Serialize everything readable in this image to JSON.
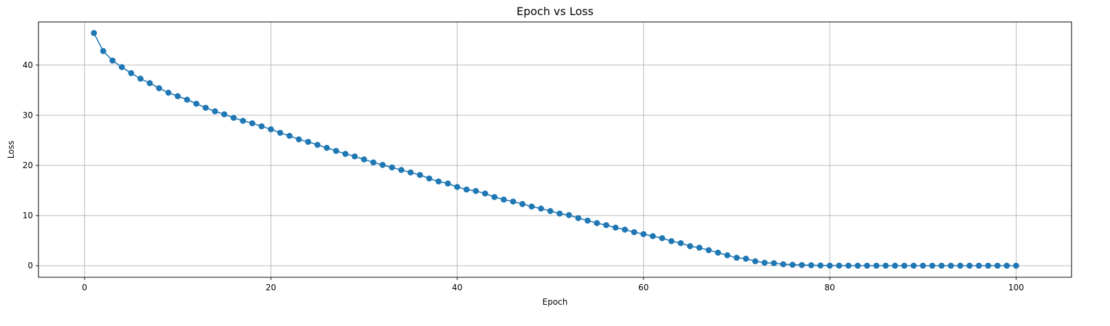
{
  "chart_data": {
    "type": "line",
    "title": "Epoch vs Loss",
    "xlabel": "Epoch",
    "ylabel": "Loss",
    "xlim": [
      -4.95,
      105.95
    ],
    "ylim": [
      -2.3,
      48.6
    ],
    "xticks": [
      0,
      20,
      40,
      60,
      80,
      100
    ],
    "yticks": [
      0,
      10,
      20,
      30,
      40
    ],
    "grid": true,
    "markers": true,
    "color": "#1f77b4",
    "series": [
      {
        "x": [
          1,
          2,
          3,
          4,
          5,
          6,
          7,
          8,
          9,
          10,
          11,
          12,
          13,
          14,
          15,
          16,
          17,
          18,
          19,
          20,
          21,
          22,
          23,
          24,
          25,
          26,
          27,
          28,
          29,
          30,
          31,
          32,
          33,
          34,
          35,
          36,
          37,
          38,
          39,
          40,
          41,
          42,
          43,
          44,
          45,
          46,
          47,
          48,
          49,
          50,
          51,
          52,
          53,
          54,
          55,
          56,
          57,
          58,
          59,
          60,
          61,
          62,
          63,
          64,
          65,
          66,
          67,
          68,
          69,
          70,
          71,
          72,
          73,
          74,
          75,
          76,
          77,
          78,
          79,
          80,
          81,
          82,
          83,
          84,
          85,
          86,
          87,
          88,
          89,
          90,
          91,
          92,
          93,
          94,
          95,
          96,
          97,
          98,
          99,
          100
        ],
        "values": [
          46.4,
          42.8,
          40.9,
          39.6,
          38.4,
          37.3,
          36.4,
          35.4,
          34.5,
          33.8,
          33.1,
          32.3,
          31.5,
          30.8,
          30.2,
          29.5,
          28.9,
          28.4,
          27.8,
          27.2,
          26.5,
          25.9,
          25.2,
          24.7,
          24.1,
          23.5,
          22.9,
          22.3,
          21.8,
          21.2,
          20.6,
          20.1,
          19.6,
          19.1,
          18.6,
          18.1,
          17.4,
          16.8,
          16.4,
          15.7,
          15.2,
          14.9,
          14.4,
          13.7,
          13.2,
          12.8,
          12.3,
          11.8,
          11.4,
          10.9,
          10.4,
          10.1,
          9.5,
          9.0,
          8.5,
          8.1,
          7.6,
          7.2,
          6.7,
          6.3,
          5.9,
          5.5,
          4.9,
          4.5,
          3.9,
          3.6,
          3.1,
          2.6,
          2.1,
          1.6,
          1.4,
          0.9,
          0.6,
          0.5,
          0.3,
          0.2,
          0.15,
          0.1,
          0.05,
          0.03,
          0.02,
          0.02,
          0.01,
          0.01,
          0.01,
          0.01,
          0.01,
          0.01,
          0.01,
          0.01,
          0.01,
          0.01,
          0.01,
          0.01,
          0.01,
          0.01,
          0.01,
          0.01,
          0.01,
          0.01
        ]
      }
    ]
  }
}
